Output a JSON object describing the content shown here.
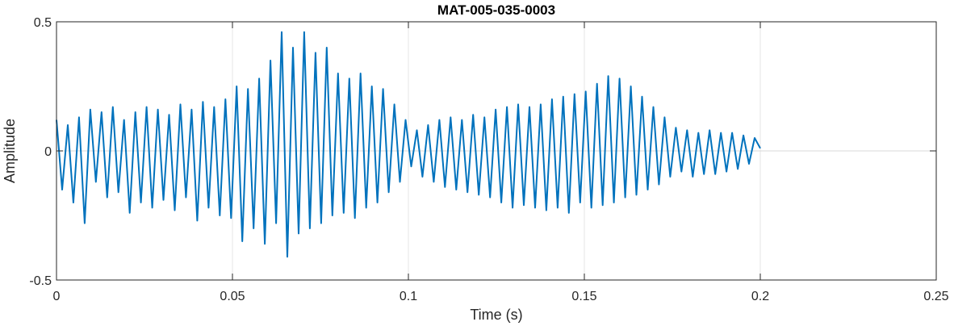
{
  "chart_data": {
    "type": "line",
    "title": "MAT-005-035-0003",
    "xlabel": "Time (s)",
    "ylabel": "Amplitude",
    "xlim": [
      0,
      0.25
    ],
    "ylim": [
      -0.5,
      0.5
    ],
    "grid": true,
    "x_ticks": [
      0,
      0.05,
      0.1,
      0.15,
      0.2,
      0.25
    ],
    "x_tick_labels": [
      "0",
      "0.05",
      "0.1",
      "0.15",
      "0.2",
      "0.25"
    ],
    "y_ticks": [
      -0.5,
      0,
      0.5
    ],
    "y_tick_labels": [
      "-0.5",
      "0",
      "0.5"
    ],
    "series": [
      {
        "color": "#0072BD",
        "x": [
          0.0,
          0.0016,
          0.0032,
          0.0048,
          0.0064,
          0.008,
          0.0096,
          0.0112,
          0.0128,
          0.0144,
          0.016,
          0.0176,
          0.0192,
          0.0208,
          0.0224,
          0.024,
          0.0256,
          0.0272,
          0.0288,
          0.0304,
          0.032,
          0.0336,
          0.0352,
          0.0368,
          0.0384,
          0.04,
          0.0416,
          0.0432,
          0.0448,
          0.0464,
          0.048,
          0.0496,
          0.0512,
          0.0528,
          0.0544,
          0.056,
          0.0576,
          0.0592,
          0.0608,
          0.0624,
          0.064,
          0.0656,
          0.0672,
          0.0688,
          0.0704,
          0.072,
          0.0736,
          0.0752,
          0.0768,
          0.0784,
          0.08,
          0.0816,
          0.0832,
          0.0848,
          0.0864,
          0.088,
          0.0896,
          0.0912,
          0.0928,
          0.0944,
          0.096,
          0.0976,
          0.0992,
          0.1008,
          0.1024,
          0.104,
          0.1056,
          0.1072,
          0.1088,
          0.1104,
          0.112,
          0.1136,
          0.1152,
          0.1168,
          0.1184,
          0.12,
          0.1216,
          0.1232,
          0.1248,
          0.1264,
          0.128,
          0.1296,
          0.1312,
          0.1328,
          0.1344,
          0.136,
          0.1376,
          0.1392,
          0.1408,
          0.1424,
          0.144,
          0.1456,
          0.1472,
          0.1488,
          0.1504,
          0.152,
          0.1536,
          0.1552,
          0.1568,
          0.1584,
          0.16,
          0.1616,
          0.1632,
          0.1648,
          0.1664,
          0.168,
          0.1696,
          0.1712,
          0.1728,
          0.1744,
          0.176,
          0.1776,
          0.1792,
          0.1808,
          0.1824,
          0.184,
          0.1856,
          0.1872,
          0.1888,
          0.1904,
          0.192,
          0.1936,
          0.1952,
          0.1968,
          0.1984,
          0.2
        ],
        "y": [
          0.12,
          -0.15,
          0.1,
          -0.2,
          0.13,
          -0.28,
          0.16,
          -0.12,
          0.15,
          -0.18,
          0.17,
          -0.16,
          0.12,
          -0.24,
          0.15,
          -0.2,
          0.17,
          -0.22,
          0.16,
          -0.19,
          0.14,
          -0.23,
          0.18,
          -0.18,
          0.16,
          -0.27,
          0.19,
          -0.22,
          0.17,
          -0.25,
          0.2,
          -0.26,
          0.25,
          -0.35,
          0.24,
          -0.3,
          0.28,
          -0.36,
          0.35,
          -0.28,
          0.46,
          -0.41,
          0.4,
          -0.32,
          0.46,
          -0.3,
          0.38,
          -0.28,
          0.4,
          -0.25,
          0.3,
          -0.24,
          0.28,
          -0.26,
          0.3,
          -0.22,
          0.25,
          -0.2,
          0.24,
          -0.16,
          0.18,
          -0.12,
          0.12,
          -0.06,
          0.08,
          -0.1,
          0.1,
          -0.12,
          0.12,
          -0.14,
          0.13,
          -0.15,
          0.12,
          -0.16,
          0.14,
          -0.17,
          0.13,
          -0.18,
          0.16,
          -0.2,
          0.17,
          -0.22,
          0.18,
          -0.21,
          0.17,
          -0.22,
          0.18,
          -0.23,
          0.2,
          -0.22,
          0.21,
          -0.24,
          0.22,
          -0.2,
          0.23,
          -0.22,
          0.26,
          -0.21,
          0.29,
          -0.2,
          0.28,
          -0.18,
          0.25,
          -0.17,
          0.21,
          -0.15,
          0.17,
          -0.13,
          0.13,
          -0.1,
          0.09,
          -0.08,
          0.08,
          -0.1,
          0.07,
          -0.09,
          0.08,
          -0.09,
          0.07,
          -0.08,
          0.07,
          -0.07,
          0.06,
          -0.05,
          0.05,
          0.01
        ]
      }
    ]
  }
}
